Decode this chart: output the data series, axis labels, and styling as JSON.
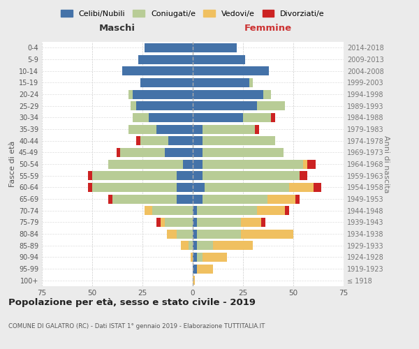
{
  "age_groups": [
    "100+",
    "95-99",
    "90-94",
    "85-89",
    "80-84",
    "75-79",
    "70-74",
    "65-69",
    "60-64",
    "55-59",
    "50-54",
    "45-49",
    "40-44",
    "35-39",
    "30-34",
    "25-29",
    "20-24",
    "15-19",
    "10-14",
    "5-9",
    "0-4"
  ],
  "birth_years": [
    "≤ 1918",
    "1919-1923",
    "1924-1928",
    "1929-1933",
    "1934-1938",
    "1939-1943",
    "1944-1948",
    "1949-1953",
    "1954-1958",
    "1959-1963",
    "1964-1968",
    "1969-1973",
    "1974-1978",
    "1979-1983",
    "1984-1988",
    "1989-1993",
    "1994-1998",
    "1999-2003",
    "2004-2008",
    "2009-2013",
    "2014-2018"
  ],
  "colors": {
    "celibi": "#4472a8",
    "coniugati": "#b8cc96",
    "vedovi": "#f0c060",
    "divorziati": "#cc2222"
  },
  "maschi": {
    "celibi": [
      0,
      0,
      0,
      0,
      0,
      0,
      0,
      8,
      8,
      8,
      5,
      14,
      12,
      18,
      22,
      28,
      30,
      26,
      35,
      27,
      24
    ],
    "coniugati": [
      0,
      0,
      0,
      2,
      8,
      14,
      20,
      32,
      42,
      42,
      37,
      22,
      14,
      14,
      8,
      3,
      2,
      0,
      0,
      0,
      0
    ],
    "vedovi": [
      0,
      0,
      1,
      4,
      5,
      2,
      4,
      0,
      0,
      0,
      0,
      0,
      0,
      0,
      0,
      0,
      0,
      0,
      0,
      0,
      0
    ],
    "divorziati": [
      0,
      0,
      0,
      0,
      0,
      2,
      0,
      2,
      2,
      2,
      0,
      2,
      2,
      0,
      0,
      0,
      0,
      0,
      0,
      0,
      0
    ]
  },
  "femmine": {
    "celibi": [
      0,
      2,
      2,
      2,
      2,
      2,
      2,
      5,
      6,
      5,
      5,
      5,
      5,
      5,
      25,
      32,
      35,
      28,
      38,
      26,
      22
    ],
    "coniugati": [
      0,
      0,
      3,
      8,
      22,
      22,
      30,
      32,
      42,
      48,
      50,
      40,
      36,
      26,
      14,
      14,
      4,
      2,
      0,
      0,
      0
    ],
    "vedovi": [
      1,
      8,
      12,
      20,
      26,
      10,
      14,
      14,
      12,
      0,
      2,
      0,
      0,
      0,
      0,
      0,
      0,
      0,
      0,
      0,
      0
    ],
    "divorziati": [
      0,
      0,
      0,
      0,
      0,
      2,
      2,
      2,
      4,
      4,
      4,
      0,
      0,
      2,
      2,
      0,
      0,
      0,
      0,
      0,
      0
    ]
  },
  "xlim": 75,
  "title": "Popolazione per età, sesso e stato civile - 2019",
  "subtitle": "COMUNE DI GALATRO (RC) - Dati ISTAT 1° gennaio 2019 - Elaborazione TUTTITALIA.IT",
  "ylabel_left": "Fasce di età",
  "ylabel_right": "Anni di nascita",
  "maschi_label": "Maschi",
  "femmine_label": "Femmine",
  "bg_color": "#ebebeb",
  "plot_bg_color": "#ffffff",
  "legend_labels": [
    "Celibi/Nubili",
    "Coniugati/e",
    "Vedovi/e",
    "Divorziati/e"
  ]
}
